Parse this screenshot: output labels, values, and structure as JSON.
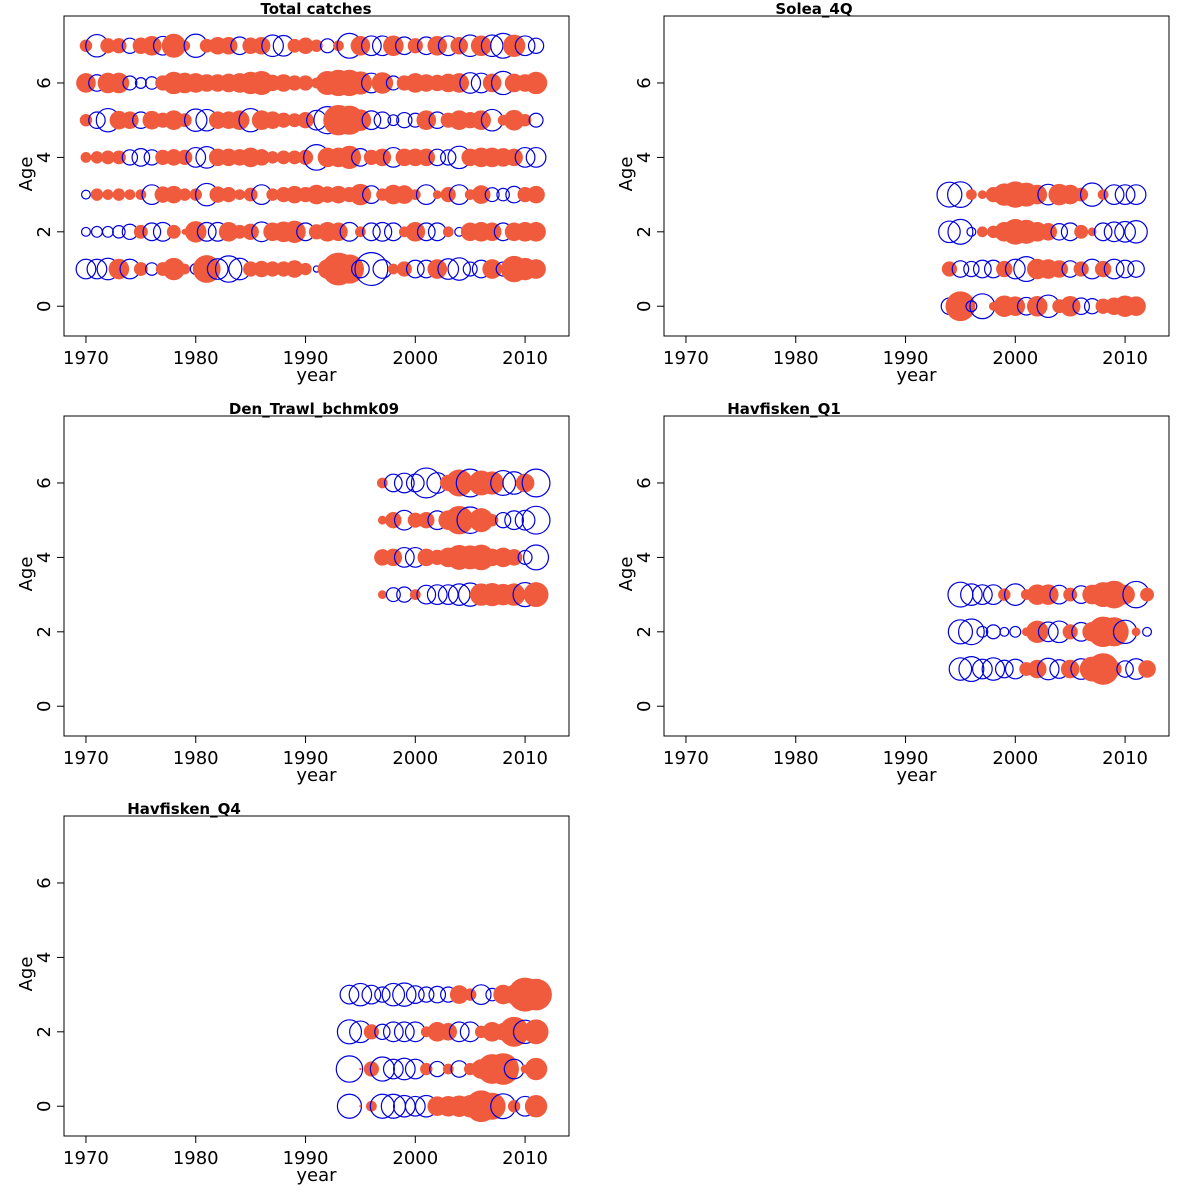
{
  "figure": {
    "colors": {
      "positive": "#F05A3D",
      "negative": "#0000DD",
      "frame": "#000000"
    }
  },
  "chart_data": [
    {
      "type": "scatter",
      "subtype": "bubble-residuals",
      "title": "Total catches",
      "xlabel": "year",
      "ylabel": "Age",
      "xlim": [
        1968,
        2014
      ],
      "ylim": [
        -0.8,
        7.8
      ],
      "xticks": [
        "1970",
        "1980",
        "1990",
        "2000",
        "2010"
      ],
      "yticks": [
        "0",
        "2",
        "4",
        "6"
      ],
      "ages": [
        1,
        2,
        3,
        4,
        5,
        6,
        7
      ],
      "years": [
        1970,
        1971,
        1972,
        1973,
        1974,
        1975,
        1976,
        1977,
        1978,
        1979,
        1980,
        1981,
        1982,
        1983,
        1984,
        1985,
        1986,
        1987,
        1988,
        1989,
        1990,
        1991,
        1992,
        1993,
        1994,
        1995,
        1996,
        1997,
        1998,
        1999,
        2000,
        2001,
        2002,
        2003,
        2004,
        2005,
        2006,
        2007,
        2008,
        2009,
        2010,
        2011
      ],
      "residuals": [
        [
          -1.0,
          -1.0,
          -1.2,
          1.1,
          -1.0,
          0.5,
          -0.4,
          0.5,
          1.3,
          0.3,
          -0.3,
          2.0,
          -1.1,
          -1.8,
          -1.2,
          0.6,
          0.7,
          0.6,
          0.6,
          0.8,
          0.4,
          -0.1,
          1.0,
          2.8,
          2.2,
          -0.8,
          -2.8,
          -0.9,
          0.3,
          0.6,
          -0.8,
          -0.8,
          1.0,
          -1.1,
          -1.3,
          -0.5,
          -0.8,
          1.0,
          -0.5,
          1.8,
          1.3,
          1.0
        ],
        [
          -0.2,
          -0.3,
          -0.3,
          -0.4,
          -0.6,
          0.5,
          -0.8,
          -0.9,
          0.5,
          0.1,
          1.2,
          -0.9,
          -0.9,
          1.0,
          0.5,
          0.7,
          -1.0,
          0.9,
          1.1,
          1.3,
          -0.8,
          0.6,
          1.0,
          0.9,
          -0.9,
          0.3,
          -0.8,
          -0.9,
          -0.8,
          0.3,
          1.0,
          -0.8,
          -0.8,
          0.3,
          -0.2,
          0.9,
          1.0,
          0.9,
          -0.8,
          0.9,
          1.0,
          1.0
        ],
        [
          -0.2,
          0.4,
          0.3,
          0.4,
          0.3,
          0.3,
          -1.0,
          0.7,
          0.8,
          0.4,
          0.4,
          -1.3,
          0.7,
          0.6,
          0.3,
          0.5,
          -1.0,
          0.4,
          0.6,
          0.8,
          0.6,
          1.0,
          0.7,
          0.8,
          0.6,
          1.2,
          -0.8,
          0.4,
          1.0,
          0.9,
          0.3,
          -1.0,
          0.2,
          0.6,
          -1.0,
          0.3,
          0.9,
          -0.5,
          -0.4,
          -0.7,
          0.6,
          0.8
        ],
        [
          0.3,
          0.4,
          0.5,
          0.5,
          -0.6,
          -0.8,
          -0.6,
          0.6,
          0.7,
          0.6,
          -1.0,
          -1.2,
          0.8,
          0.8,
          0.7,
          1.0,
          0.7,
          0.4,
          0.5,
          0.5,
          0.6,
          -1.7,
          1.0,
          1.0,
          1.4,
          -0.8,
          0.6,
          0.8,
          -1.0,
          0.8,
          0.8,
          0.8,
          -0.7,
          -0.6,
          -1.3,
          0.8,
          1.0,
          1.0,
          0.9,
          0.8,
          -1.0,
          -1.0
        ],
        [
          0.4,
          -0.7,
          -1.4,
          0.9,
          0.8,
          -0.7,
          0.9,
          0.6,
          1.0,
          0.5,
          -1.3,
          -1.2,
          0.8,
          0.8,
          1.0,
          -1.4,
          1.0,
          0.8,
          0.6,
          0.5,
          0.7,
          -1.0,
          -1.9,
          2.4,
          2.2,
          1.2,
          -0.9,
          -0.7,
          -0.3,
          -0.6,
          -0.5,
          1.0,
          -0.7,
          0.6,
          1.0,
          0.7,
          1.0,
          -1.2,
          0.3,
          1.1,
          0.4,
          -0.5
        ],
        [
          1.0,
          -0.7,
          1.1,
          1.1,
          -0.5,
          -0.3,
          -0.4,
          0.6,
          1.3,
          1.1,
          1.0,
          0.8,
          0.8,
          0.9,
          1.0,
          1.3,
          1.5,
          0.7,
          0.8,
          0.6,
          0.6,
          0.3,
          1.5,
          1.8,
          1.8,
          1.4,
          -1.0,
          1.2,
          -0.5,
          0.6,
          1.0,
          0.8,
          0.7,
          0.9,
          1.0,
          -1.1,
          -1.0,
          0.9,
          -1.4,
          0.9,
          0.8,
          1.3
        ],
        [
          0.4,
          -1.3,
          0.6,
          0.6,
          -0.6,
          0.7,
          1.0,
          -0.9,
          1.5,
          0.3,
          -1.4,
          0.5,
          0.8,
          0.8,
          -0.8,
          0.7,
          0.8,
          -1.2,
          -1.1,
          0.5,
          0.7,
          0.4,
          -0.5,
          0.3,
          -1.6,
          1.0,
          -1.0,
          -1.0,
          1.1,
          -0.8,
          0.6,
          -0.8,
          1.0,
          -1.0,
          0.8,
          -1.2,
          1.1,
          -1.2,
          -1.6,
          1.3,
          -1.0,
          -0.6
        ]
      ]
    },
    {
      "type": "scatter",
      "subtype": "bubble-residuals",
      "title": "Solea_4Q",
      "xlabel": "year",
      "ylabel": "Age",
      "xlim": [
        1968,
        2014
      ],
      "ylim": [
        -0.8,
        7.8
      ],
      "xticks": [
        "1970",
        "1980",
        "1990",
        "2000",
        "2010"
      ],
      "yticks": [
        "0",
        "2",
        "4",
        "6"
      ],
      "ages": [
        0,
        1,
        2,
        3
      ],
      "years": [
        1994,
        1995,
        1996,
        1997,
        1998,
        1999,
        2000,
        2001,
        2002,
        2003,
        2004,
        2005,
        2006,
        2007,
        2008,
        2009,
        2010,
        2011
      ],
      "residuals": [
        [
          -0.7,
          2.3,
          -0.3,
          -1.6,
          0.2,
          1.2,
          1.0,
          -0.8,
          1.1,
          -1.3,
          0.5,
          1.1,
          -0.7,
          -0.6,
          0.6,
          0.8,
          1.2,
          1.0
        ],
        [
          0.6,
          -0.7,
          -0.6,
          -0.8,
          -0.8,
          0.7,
          -1.0,
          -1.6,
          1.1,
          1.0,
          0.8,
          -0.7,
          0.6,
          -1.0,
          0.7,
          -1.0,
          -0.8,
          -0.7
        ],
        [
          -1.2,
          -1.6,
          -0.2,
          0.3,
          0.4,
          1.0,
          1.7,
          1.5,
          1.0,
          0.8,
          -0.7,
          -0.8,
          0.5,
          0.2,
          -0.8,
          -1.0,
          -1.1,
          -1.3
        ],
        [
          -1.6,
          -1.7,
          0.3,
          0.2,
          0.6,
          1.3,
          1.8,
          1.5,
          1.0,
          -1.1,
          1.2,
          1.0,
          0.5,
          -1.4,
          0.3,
          -1.0,
          -1.0,
          -1.0
        ]
      ]
    },
    {
      "type": "scatter",
      "subtype": "bubble-residuals",
      "title": "Den_Trawl_bchmk09",
      "xlabel": "year",
      "ylabel": "Age",
      "xlim": [
        1968,
        2014
      ],
      "ylim": [
        -0.8,
        7.8
      ],
      "xticks": [
        "1970",
        "1980",
        "1990",
        "2000",
        "2010"
      ],
      "yticks": [
        "0",
        "2",
        "4",
        "6"
      ],
      "ages": [
        3,
        4,
        5,
        6
      ],
      "years": [
        1997,
        1998,
        1999,
        2000,
        2001,
        2002,
        2003,
        2004,
        2005,
        2006,
        2007,
        2008,
        2009,
        2010,
        2011
      ],
      "residuals": [
        [
          0.2,
          -0.5,
          -0.6,
          0.3,
          -0.9,
          -1.0,
          -1.0,
          -1.2,
          -1.4,
          1.3,
          1.4,
          1.2,
          1.3,
          -1.5,
          1.6
        ],
        [
          0.7,
          0.8,
          -1.0,
          -1.0,
          0.8,
          0.6,
          1.0,
          1.6,
          1.5,
          1.7,
          0.8,
          1.0,
          0.7,
          -0.5,
          -1.6
        ],
        [
          0.2,
          0.7,
          -1.0,
          0.6,
          0.7,
          -0.9,
          1.0,
          2.1,
          -1.8,
          1.5,
          0.4,
          -0.6,
          -0.9,
          -1.0,
          -2.0
        ],
        [
          0.3,
          -0.8,
          -1.0,
          -0.8,
          -2.3,
          -1.1,
          0.7,
          1.9,
          -2.0,
          1.6,
          1.4,
          -1.6,
          -1.3,
          0.9,
          -2.0
        ]
      ]
    },
    {
      "type": "scatter",
      "subtype": "bubble-residuals",
      "title": "Havfisken_Q1",
      "xlabel": "year",
      "ylabel": "Age",
      "xlim": [
        1968,
        2014
      ],
      "ylim": [
        -0.8,
        7.8
      ],
      "xticks": [
        "1970",
        "1980",
        "1990",
        "2000",
        "2010"
      ],
      "yticks": [
        "0",
        "2",
        "4",
        "6"
      ],
      "ages": [
        1,
        2,
        3
      ],
      "years": [
        1995,
        1996,
        1997,
        1998,
        1999,
        2000,
        2001,
        2002,
        2003,
        2004,
        2005,
        2006,
        2007,
        2008,
        2009,
        2010,
        2011,
        2012
      ],
      "residuals": [
        [
          -1.3,
          -1.6,
          -1.0,
          -1.3,
          -0.8,
          -1.0,
          0.5,
          0.9,
          -1.2,
          -0.9,
          0.9,
          -1.1,
          1.6,
          2.6,
          0.6,
          -0.7,
          -1.1,
          0.8
        ],
        [
          -1.5,
          -1.7,
          -0.3,
          -0.5,
          -0.2,
          -0.3,
          0.2,
          1.3,
          -1.0,
          -1.2,
          0.6,
          -0.9,
          1.0,
          2.4,
          2.2,
          -1.4,
          0.2,
          -0.2
        ],
        [
          -1.6,
          -1.2,
          -1.0,
          -1.0,
          0.4,
          -1.2,
          0.3,
          1.1,
          1.1,
          -0.9,
          0.5,
          -0.8,
          1.0,
          1.6,
          2.0,
          1.0,
          -1.8,
          0.5
        ]
      ]
    },
    {
      "type": "scatter",
      "subtype": "bubble-residuals",
      "title": "Havfisken_Q4",
      "xlabel": "year",
      "ylabel": "Age",
      "xlim": [
        1968,
        2014
      ],
      "ylim": [
        -0.8,
        7.8
      ],
      "xticks": [
        "1970",
        "1980",
        "1990",
        "2000",
        "2010"
      ],
      "yticks": [
        "0",
        "2",
        "4",
        "6"
      ],
      "ages": [
        0,
        1,
        2,
        3
      ],
      "years": [
        1994,
        1995,
        1996,
        1997,
        1998,
        1999,
        2000,
        2001,
        2002,
        2003,
        2004,
        2005,
        2006,
        2007,
        2008,
        2009,
        2010,
        2011
      ],
      "residuals": [
        [
          -1.5,
          0.0,
          0.3,
          -1.5,
          -1.5,
          -1.2,
          -1.0,
          -1.2,
          1.0,
          1.1,
          1.2,
          1.3,
          2.6,
          1.9,
          -1.6,
          0.4,
          -1.0,
          1.3
        ],
        [
          -1.8,
          0.0,
          0.6,
          -1.5,
          -1.0,
          -1.2,
          -1.0,
          0.4,
          -0.6,
          0.3,
          -0.7,
          0.4,
          1.0,
          2.3,
          2.6,
          -1.0,
          0.2,
          1.3
        ],
        [
          -1.5,
          -1.2,
          0.6,
          -0.6,
          -1.0,
          -1.0,
          -1.0,
          0.3,
          1.0,
          0.8,
          -1.0,
          -1.0,
          0.4,
          1.0,
          0.8,
          2.3,
          -1.4,
          1.6
        ],
        [
          -0.9,
          -1.3,
          -0.9,
          -0.6,
          -1.3,
          -1.4,
          -0.8,
          -0.6,
          -0.7,
          -0.6,
          0.9,
          0.4,
          -1.0,
          -0.4,
          1.0,
          1.0,
          3.0,
          2.6
        ]
      ]
    }
  ]
}
